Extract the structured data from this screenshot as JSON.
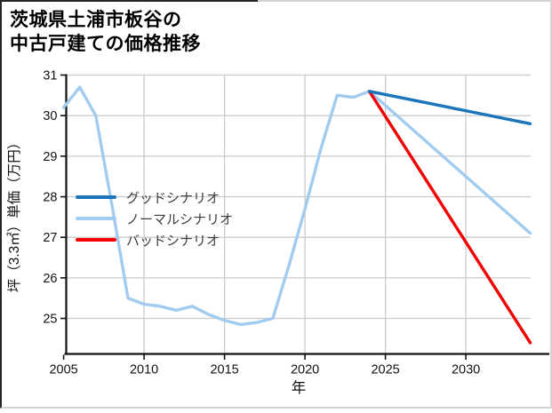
{
  "title": {
    "line1": "茨城県土浦市板谷の",
    "line2": "中古戸建ての価格推移"
  },
  "chart_data": {
    "type": "line",
    "title": "茨城県土浦市板谷の中古戸建ての価格推移",
    "xlabel": "年",
    "ylabel": "坪（3.3㎡）単価（万円）",
    "x_ticks": [
      2005,
      2010,
      2015,
      2020,
      2025,
      2030
    ],
    "y_ticks": [
      25,
      26,
      27,
      28,
      29,
      30,
      31
    ],
    "xlim": [
      2005,
      2034
    ],
    "ylim": [
      24.1,
      31
    ],
    "grid": true,
    "legend_position": "center-left",
    "colors": {
      "grid": "#cbcbcb",
      "axis": "#111111",
      "legend_text": "#3d3d3d",
      "good": "#1b75bb",
      "normal": "#a2cbf0",
      "bad": "#f40000"
    },
    "series": [
      {
        "name": "グッドシナリオ",
        "color": "#1b75bb",
        "x": [
          2024,
          2034
        ],
        "values": [
          30.6,
          29.8
        ]
      },
      {
        "name": "ノーマルシナリオ",
        "color": "#a2cbf0",
        "x": [
          2005,
          2006,
          2007,
          2008,
          2009,
          2010,
          2011,
          2012,
          2013,
          2014,
          2015,
          2016,
          2017,
          2018,
          2019,
          2020,
          2021,
          2022,
          2023,
          2024,
          2034
        ],
        "values": [
          30.2,
          30.7,
          30.0,
          27.8,
          25.5,
          25.35,
          25.3,
          25.2,
          25.3,
          25.1,
          24.95,
          24.85,
          24.9,
          25.0,
          26.3,
          27.7,
          29.2,
          30.5,
          30.45,
          30.6,
          27.1
        ]
      },
      {
        "name": "バッドシナリオ",
        "color": "#f40000",
        "x": [
          2024,
          2034
        ],
        "values": [
          30.6,
          24.4
        ]
      }
    ]
  }
}
